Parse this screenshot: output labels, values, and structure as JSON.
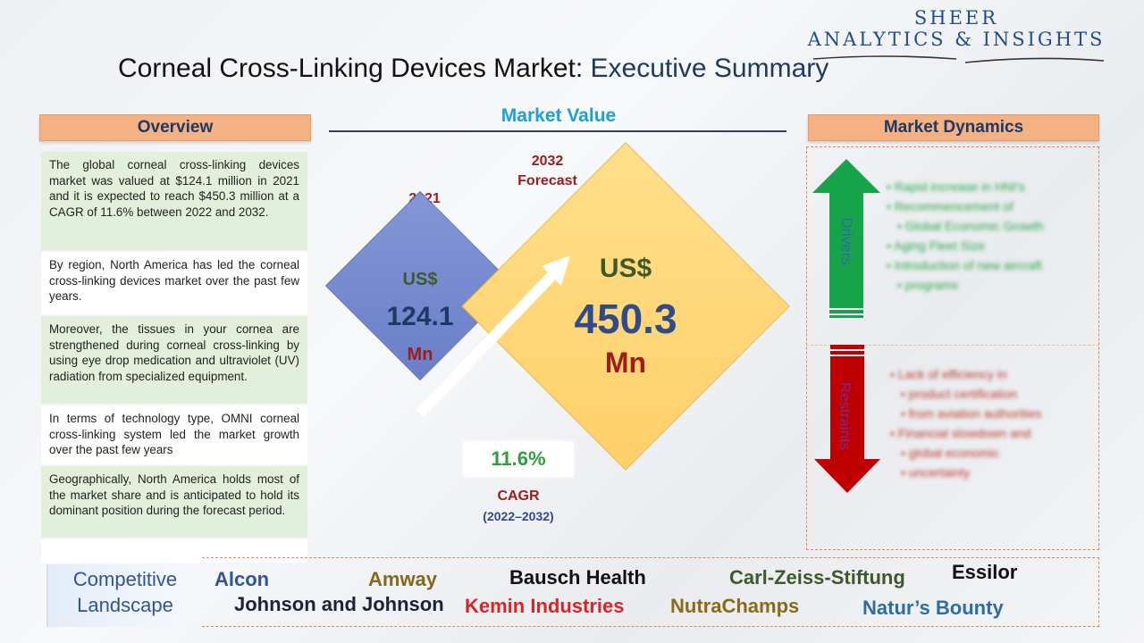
{
  "logo": {
    "line1": "SHEER",
    "line2": "ANALYTICS & INSIGHTS"
  },
  "title": {
    "main": "Corneal Cross-Linking Devices Market: ",
    "accent": "Executive Summary"
  },
  "overview": {
    "header": "Overview",
    "items": [
      "The global corneal cross-linking devices market was valued at $124.1 million in 2021 and it is expected to reach $450.3 million at a CAGR of 11.6% between 2022 and 2032.",
      "By region, North America has led the corneal cross-linking devices market over the past few years.",
      "Moreover, the tissues in your cornea are strengthened during corneal cross-linking by using eye drop medication and ultraviolet (UV) radiation from specialized equipment.",
      "In terms of technology type, OMNI corneal cross-linking system led the market growth over the past few years",
      "Geographically, North America holds most of the market share and is anticipated to hold its dominant position during the forecast period."
    ]
  },
  "market_value": {
    "header": "Market Value",
    "y2021": {
      "year": "2021",
      "currency": "US$",
      "value": "124.1",
      "unit": "Mn"
    },
    "y2032": {
      "year": "2032",
      "label": "Forecast",
      "currency": "US$",
      "value": "450.3",
      "unit": "Mn"
    },
    "cagr": {
      "value": "11.6%",
      "label": "CAGR",
      "period": "(2022–2032)"
    }
  },
  "market_dynamics": {
    "header": "Market Dynamics",
    "drivers_label": "Drivers",
    "restraints_label": "Restraints",
    "drivers": [
      "Rapid increase in HNI's",
      "Recommencement of",
      "Global Economic Growth",
      "Aging Fleet Size",
      "Introduction of new aircraft",
      "programs"
    ],
    "restraints": [
      "Lack of efficiency in",
      "product certification",
      "from aviation authorities",
      "Financial slowdown and",
      "global economic",
      "uncertainty"
    ]
  },
  "competitive_landscape": {
    "label_line1": "Competitive",
    "label_line2": "Landscape",
    "companies": [
      {
        "name": "Alcon",
        "color": "#2f5597"
      },
      {
        "name": "Amway",
        "color": "#7f6a1f"
      },
      {
        "name": "Bausch Health",
        "color": "#111111"
      },
      {
        "name": "Carl-Zeiss-Stiftung",
        "color": "#3f5a2a"
      },
      {
        "name": "Essilor",
        "color": "#111111"
      },
      {
        "name": "Johnson and Johnson",
        "color": "#1f1f3a"
      },
      {
        "name": "Kemin Industries",
        "color": "#d62728"
      },
      {
        "name": "NutraChamps",
        "color": "#8b6a1a"
      },
      {
        "name": "Natur’s Bounty",
        "color": "#2e6da4"
      }
    ]
  },
  "colors": {
    "header_bg": "#f4b183",
    "overview_green": "#e2efda",
    "driver_arrow": "#17a34a",
    "restraint_arrow": "#c00000"
  }
}
